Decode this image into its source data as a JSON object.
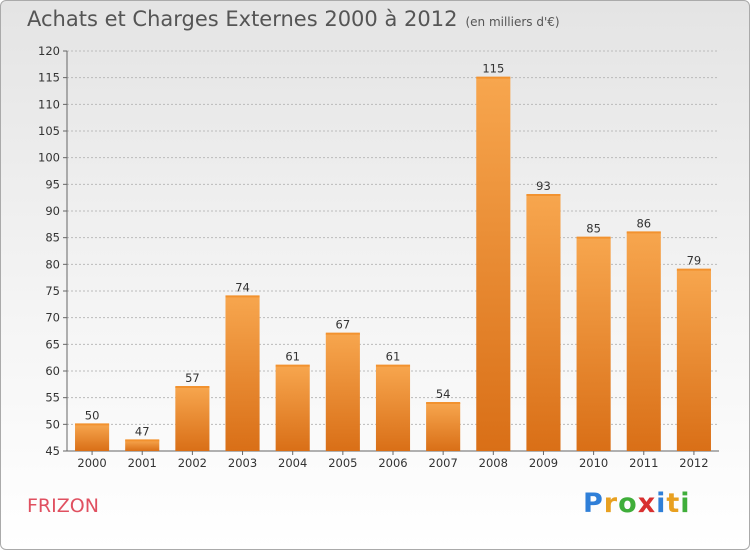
{
  "title": "Achats et Charges Externes 2000 à 2012",
  "subtitle": "(en milliers d'€)",
  "commune": "FRIZON",
  "logo": {
    "letters": [
      "P",
      "r",
      "o",
      "x",
      "i",
      "t",
      "i"
    ],
    "colors": [
      "#2f7fd8",
      "#e8a020",
      "#3fae3a",
      "#d83030",
      "#2f7fd8",
      "#e8a020",
      "#3fae3a"
    ]
  },
  "colors": {
    "bar_top": "#f7a64e",
    "bar_bottom": "#d96f17",
    "grid": "#bbbbbb",
    "axis": "#666666",
    "accent": "#e05060"
  },
  "chart_data": {
    "type": "bar",
    "title": "Achats et Charges Externes 2000 à 2012",
    "subtitle": "(en milliers d'€)",
    "categories": [
      "2000",
      "2001",
      "2002",
      "2003",
      "2004",
      "2005",
      "2006",
      "2007",
      "2008",
      "2009",
      "2010",
      "2011",
      "2012"
    ],
    "values": [
      50,
      47,
      57,
      74,
      61,
      67,
      61,
      54,
      115,
      93,
      85,
      86,
      79
    ],
    "ylim": [
      45,
      120
    ],
    "yticks": [
      45,
      50,
      55,
      60,
      65,
      70,
      75,
      80,
      85,
      90,
      95,
      100,
      105,
      110,
      115,
      120
    ],
    "grid": true,
    "xlabel": "",
    "ylabel": ""
  }
}
